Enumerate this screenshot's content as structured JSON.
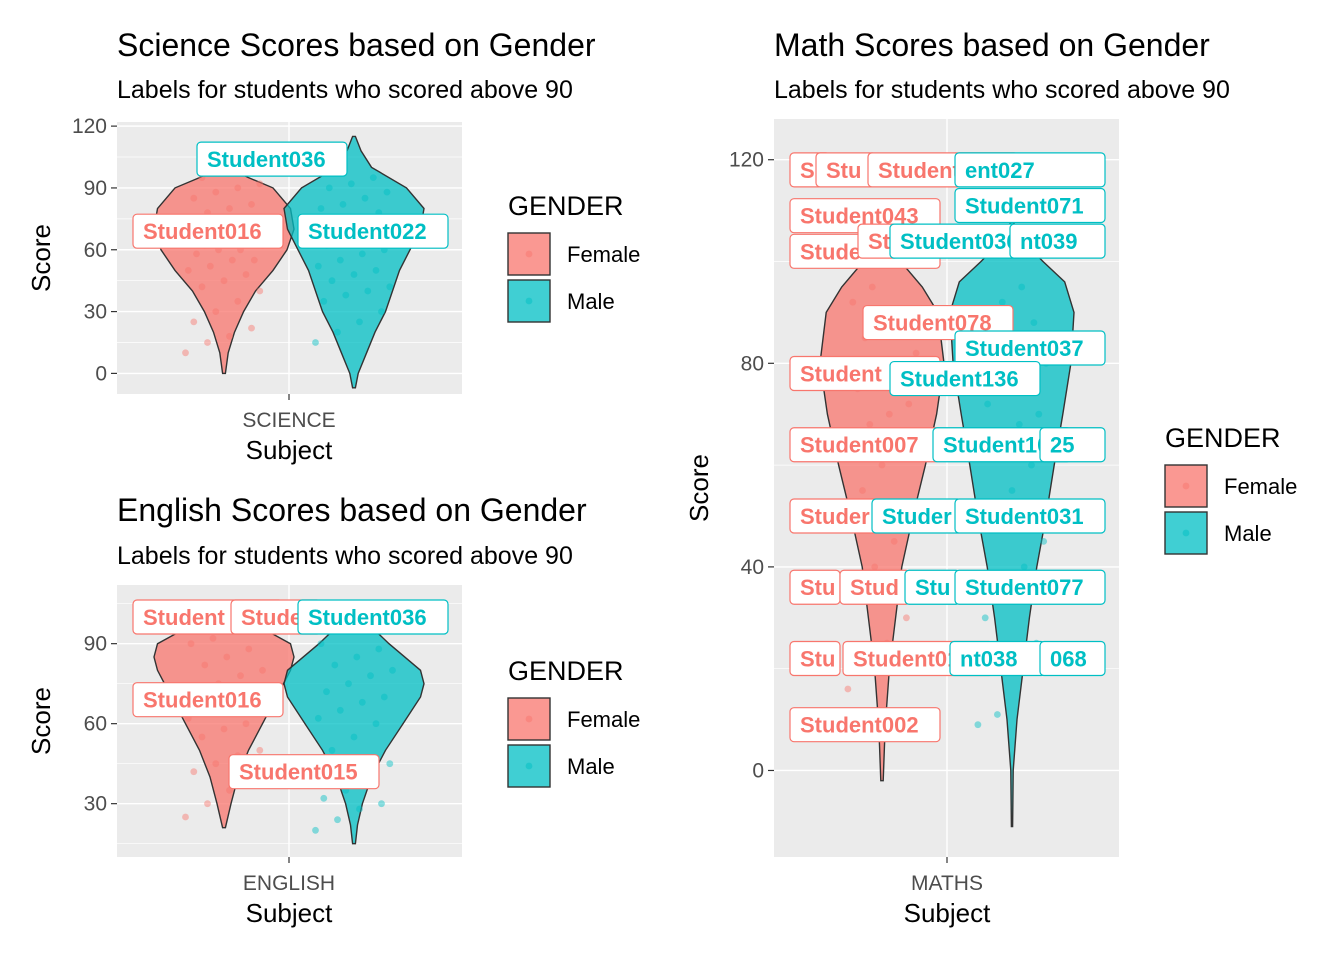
{
  "colors": {
    "female": "#F8766D",
    "male": "#00BFC4",
    "panel": "#EBEBEB",
    "grid": "#FFFFFF"
  },
  "chart_data": [
    {
      "type": "violin",
      "title": "Science Scores based on Gender",
      "subtitle": "Labels for students who scored above 90",
      "xlabel": "Subject",
      "ylabel": "Score",
      "category": "SCIENCE",
      "yticks": [
        "0",
        "30",
        "60",
        "90",
        "120"
      ],
      "ylim": [
        -10,
        122
      ],
      "legend": {
        "title": "GENDER",
        "items": [
          "Female",
          "Male"
        ],
        "position": "right"
      },
      "series": [
        {
          "name": "Female",
          "violin": [
            [
              0,
              0.02
            ],
            [
              10,
              0.06
            ],
            [
              20,
              0.15
            ],
            [
              30,
              0.28
            ],
            [
              40,
              0.45
            ],
            [
              50,
              0.7
            ],
            [
              60,
              0.9
            ],
            [
              70,
              1.0
            ],
            [
              80,
              0.95
            ],
            [
              90,
              0.7
            ],
            [
              95,
              0.35
            ],
            [
              100,
              0.05
            ]
          ],
          "points": [
            10,
            15,
            18,
            22,
            25,
            30,
            35,
            40,
            42,
            45,
            48,
            50,
            52,
            55,
            55,
            58,
            60,
            60,
            62,
            62,
            65,
            65,
            68,
            68,
            70,
            70,
            72,
            72,
            75,
            75,
            78,
            80,
            82,
            85,
            88,
            90,
            92,
            95
          ]
        },
        {
          "name": "Male",
          "violin": [
            [
              -7,
              0.02
            ],
            [
              0,
              0.06
            ],
            [
              10,
              0.18
            ],
            [
              20,
              0.3
            ],
            [
              30,
              0.45
            ],
            [
              40,
              0.55
            ],
            [
              50,
              0.65
            ],
            [
              60,
              0.8
            ],
            [
              70,
              0.95
            ],
            [
              80,
              1.0
            ],
            [
              90,
              0.75
            ],
            [
              100,
              0.25
            ],
            [
              108,
              0.1
            ],
            [
              115,
              0.02
            ]
          ],
          "points": [
            15,
            20,
            25,
            30,
            35,
            38,
            40,
            42,
            45,
            48,
            50,
            52,
            55,
            58,
            60,
            62,
            65,
            68,
            70,
            72,
            75,
            78,
            80,
            82,
            85,
            88,
            90,
            92,
            95
          ]
        }
      ],
      "labels": [
        {
          "text": "Student036",
          "gender": "Male",
          "y": 104
        },
        {
          "text": "Student016",
          "gender": "Female",
          "y": 69
        },
        {
          "text": "Student022",
          "gender": "Male",
          "y": 69
        }
      ]
    },
    {
      "type": "violin",
      "title": "English Scores based on Gender",
      "subtitle": "Labels for students who scored above 90",
      "xlabel": "Subject",
      "ylabel": "Score",
      "category": "ENGLISH",
      "yticks": [
        "30",
        "60",
        "90"
      ],
      "ylim": [
        10,
        112
      ],
      "legend": {
        "title": "GENDER",
        "items": [
          "Female",
          "Male"
        ],
        "position": "right"
      },
      "series": [
        {
          "name": "Female",
          "violin": [
            [
              21,
              0.02
            ],
            [
              30,
              0.1
            ],
            [
              40,
              0.2
            ],
            [
              50,
              0.35
            ],
            [
              60,
              0.55
            ],
            [
              70,
              0.75
            ],
            [
              80,
              0.95
            ],
            [
              85,
              1.0
            ],
            [
              90,
              0.95
            ],
            [
              95,
              0.6
            ],
            [
              100,
              0.25
            ],
            [
              104,
              0.05
            ]
          ],
          "points": [
            25,
            30,
            35,
            38,
            42,
            45,
            48,
            50,
            55,
            58,
            60,
            62,
            65,
            68,
            70,
            72,
            75,
            78,
            80,
            82,
            85,
            88,
            90,
            92,
            95
          ]
        },
        {
          "name": "Male",
          "violin": [
            [
              15,
              0.02
            ],
            [
              22,
              0.05
            ],
            [
              30,
              0.12
            ],
            [
              40,
              0.25
            ],
            [
              50,
              0.45
            ],
            [
              60,
              0.7
            ],
            [
              70,
              0.95
            ],
            [
              75,
              1.0
            ],
            [
              80,
              0.95
            ],
            [
              90,
              0.5
            ],
            [
              100,
              0.1
            ],
            [
              105,
              0.02
            ]
          ],
          "points": [
            20,
            24,
            28,
            30,
            32,
            35,
            40,
            45,
            50,
            55,
            60,
            62,
            65,
            68,
            70,
            72,
            75,
            78,
            80,
            82,
            85,
            88,
            90
          ]
        }
      ],
      "labels": [
        {
          "text": "Student",
          "gender": "Female",
          "y": 100
        },
        {
          "text": "Stude",
          "gender": "Female",
          "y": 100
        },
        {
          "text": "Student036",
          "gender": "Male",
          "y": 100
        },
        {
          "text": "Student016",
          "gender": "Female",
          "y": 69
        },
        {
          "text": "Student015",
          "gender": "Female",
          "y": 42
        }
      ]
    },
    {
      "type": "violin",
      "title": "Math Scores based on Gender",
      "subtitle": "Labels for students who scored above 90",
      "xlabel": "Subject",
      "ylabel": "Score",
      "category": "MATHS",
      "yticks": [
        "0",
        "40",
        "80",
        "120"
      ],
      "ylim": [
        -17,
        128
      ],
      "legend": {
        "title": "GENDER",
        "items": [
          "Female",
          "Male"
        ],
        "position": "right"
      },
      "series": [
        {
          "name": "Female",
          "violin": [
            [
              -2,
              0.02
            ],
            [
              5,
              0.04
            ],
            [
              10,
              0.06
            ],
            [
              20,
              0.12
            ],
            [
              30,
              0.22
            ],
            [
              40,
              0.32
            ],
            [
              50,
              0.5
            ],
            [
              60,
              0.7
            ],
            [
              70,
              0.88
            ],
            [
              80,
              1.0
            ],
            [
              90,
              0.9
            ],
            [
              95,
              0.65
            ],
            [
              100,
              0.3
            ],
            [
              105,
              0.05
            ]
          ],
          "points": [
            16,
            20,
            25,
            30,
            35,
            40,
            45,
            50,
            55,
            60,
            62,
            65,
            68,
            70,
            72,
            75,
            78,
            80,
            82,
            85,
            88,
            90,
            92,
            95
          ]
        },
        {
          "name": "Male",
          "violin": [
            [
              -11,
              0.01
            ],
            [
              0,
              0.02
            ],
            [
              10,
              0.08
            ],
            [
              20,
              0.18
            ],
            [
              30,
              0.28
            ],
            [
              40,
              0.4
            ],
            [
              50,
              0.55
            ],
            [
              60,
              0.68
            ],
            [
              70,
              0.82
            ],
            [
              80,
              0.95
            ],
            [
              90,
              1.0
            ],
            [
              96,
              0.85
            ],
            [
              100,
              0.5
            ],
            [
              105,
              0.1
            ],
            [
              108,
              0.02
            ]
          ],
          "points": [
            9,
            11,
            20,
            25,
            30,
            35,
            40,
            45,
            50,
            55,
            60,
            62,
            65,
            68,
            70,
            72,
            75,
            78,
            80,
            82,
            85,
            88,
            90,
            92,
            95
          ]
        }
      ],
      "labels": [
        {
          "text": "S",
          "gender": "Female",
          "y": 118
        },
        {
          "text": "Stu",
          "gender": "Female",
          "y": 118
        },
        {
          "text": "Student012",
          "gender": "Female",
          "y": 118
        },
        {
          "text": "ent027",
          "gender": "Male",
          "y": 118
        },
        {
          "text": "Student071",
          "gender": "Male",
          "y": 111
        },
        {
          "text": "Student043",
          "gender": "Female",
          "y": 109
        },
        {
          "text": "Stude",
          "gender": "Female",
          "y": 102
        },
        {
          "text": "St",
          "gender": "Female",
          "y": 104
        },
        {
          "text": "Student036",
          "gender": "Male",
          "y": 104
        },
        {
          "text": "nt039",
          "gender": "Male",
          "y": 104
        },
        {
          "text": "Student078",
          "gender": "Female",
          "y": 88
        },
        {
          "text": "Student037",
          "gender": "Male",
          "y": 83
        },
        {
          "text": "Student",
          "gender": "Female",
          "y": 78
        },
        {
          "text": "Student136",
          "gender": "Male",
          "y": 77
        },
        {
          "text": "Student007",
          "gender": "Female",
          "y": 64
        },
        {
          "text": "Student104",
          "gender": "Male",
          "y": 64
        },
        {
          "text": "25",
          "gender": "Male",
          "y": 64
        },
        {
          "text": "Studer",
          "gender": "Female",
          "y": 50
        },
        {
          "text": "Studer",
          "gender": "Male",
          "y": 50
        },
        {
          "text": "Student031",
          "gender": "Male",
          "y": 50
        },
        {
          "text": "Stu",
          "gender": "Female",
          "y": 36
        },
        {
          "text": "Stud",
          "gender": "Female",
          "y": 36
        },
        {
          "text": "Stu",
          "gender": "Male",
          "y": 36
        },
        {
          "text": "Student077",
          "gender": "Male",
          "y": 36
        },
        {
          "text": "Stu",
          "gender": "Female",
          "y": 22
        },
        {
          "text": "Student016",
          "gender": "Female",
          "y": 22
        },
        {
          "text": "nt038",
          "gender": "Male",
          "y": 22
        },
        {
          "text": "068",
          "gender": "Male",
          "y": 22
        },
        {
          "text": "Student002",
          "gender": "Female",
          "y": 9
        }
      ]
    }
  ]
}
